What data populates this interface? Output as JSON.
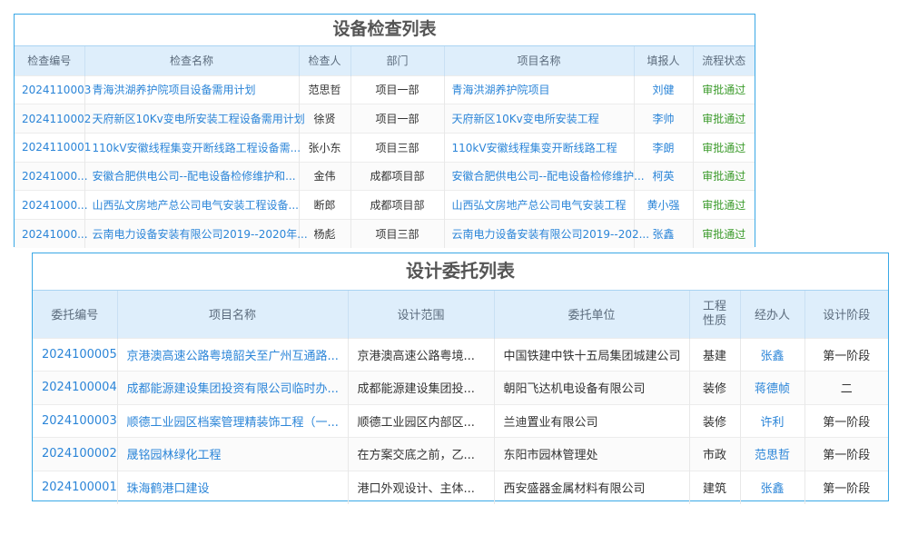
{
  "inspection": {
    "title": "设备检查列表",
    "headers": [
      "检查编号",
      "检查名称",
      "检查人",
      "部门",
      "项目名称",
      "填报人",
      "流程状态"
    ],
    "rows": [
      [
        "2024110003",
        "青海洪湖养护院项目设备需用计划",
        "范思哲",
        "项目一部",
        "青海洪湖养护院项目",
        "刘健",
        "审批通过"
      ],
      [
        "2024110002",
        "天府新区10Kv变电所安装工程设备需用计划",
        "徐贤",
        "项目一部",
        "天府新区10Kv变电所安装工程",
        "李帅",
        "审批通过"
      ],
      [
        "2024110001",
        "110kV安徽线程集变开断线路工程设备需...",
        "张小东",
        "项目三部",
        "110kV安徽线程集变开断线路工程",
        "李朗",
        "审批通过"
      ],
      [
        "20241000...",
        "安徽合肥供电公司--配电设备检修维护和...",
        "金伟",
        "成都项目部",
        "安徽合肥供电公司--配电设备检修维护...",
        "柯英",
        "审批通过"
      ],
      [
        "20241000...",
        "山西弘文房地产总公司电气安装工程设备...",
        "断郎",
        "成都项目部",
        "山西弘文房地产总公司电气安装工程",
        "黄小强",
        "审批通过"
      ],
      [
        "20241000...",
        "云南电力设备安装有限公司2019--2020年...",
        "杨彪",
        "项目三部",
        "云南电力设备安装有限公司2019--202...",
        "张鑫",
        "审批通过"
      ]
    ]
  },
  "commission": {
    "title": "设计委托列表",
    "headers": [
      "委托编号",
      "项目名称",
      "设计范围",
      "委托单位",
      "工程性质",
      "经办人",
      "设计阶段"
    ],
    "rows": [
      [
        "2024100005",
        "京港澳高速公路粤境韶关至广州互通路...",
        "京港澳高速公路粤境...",
        "中国铁建中铁十五局集团城建公司",
        "基建",
        "张鑫",
        "第一阶段"
      ],
      [
        "2024100004",
        "成都能源建设集团投资有限公司临时办...",
        "成都能源建设集团投...",
        "朝阳飞达机电设备有限公司",
        "装修",
        "蒋德帧",
        "二"
      ],
      [
        "2024100003",
        "顺德工业园区档案管理精装饰工程（一...",
        "顺德工业园区内部区...",
        "兰迪置业有限公司",
        "装修",
        "许利",
        "第一阶段"
      ],
      [
        "2024100002",
        "晟铭园林绿化工程",
        "在方案交底之前，乙...",
        "东阳市园林管理处",
        "市政",
        "范思哲",
        "第一阶段"
      ],
      [
        "2024100001",
        "珠海鹤港口建设",
        "港口外观设计、主体...",
        "西安盛器金属材料有限公司",
        "建筑",
        "张鑫",
        "第一阶段"
      ]
    ]
  },
  "colors": {
    "link": "#2b85d8",
    "status_ok": "#3a9a2a",
    "header_bg": "#deeefb",
    "border": "#3aa8e6"
  }
}
